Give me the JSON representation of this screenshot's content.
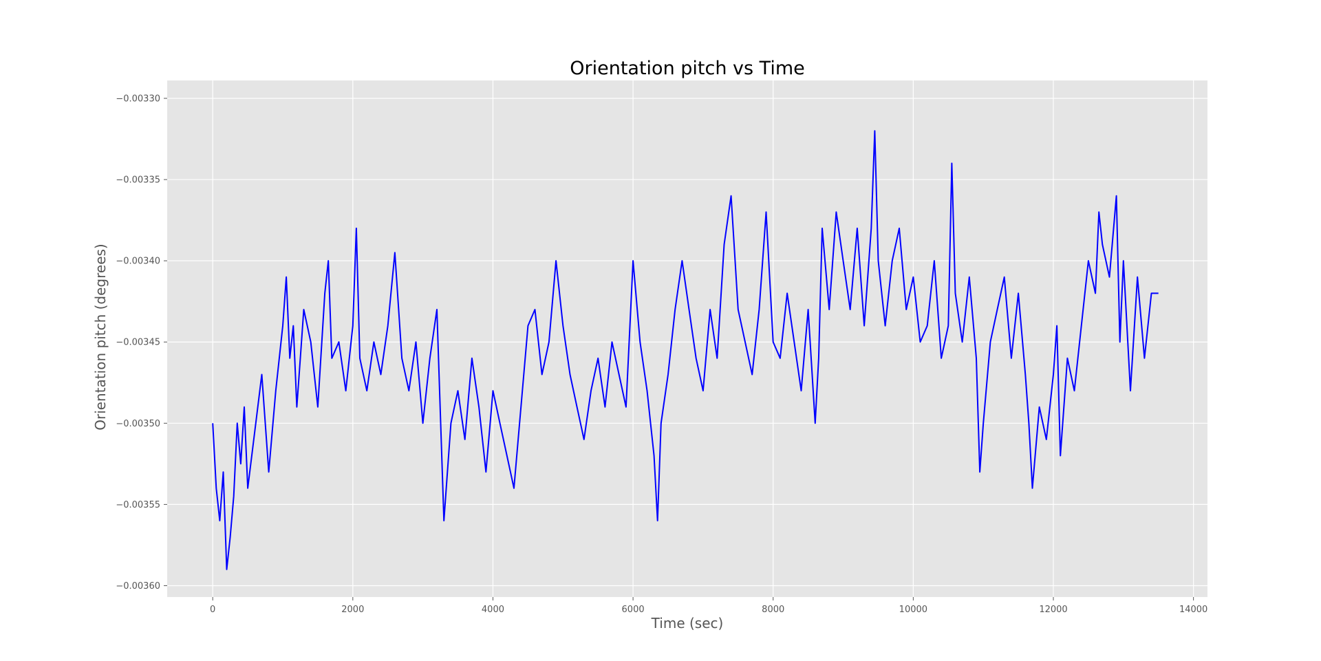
{
  "chart_data": {
    "type": "line",
    "title": "Orientation pitch vs Time",
    "xlabel": "Time (sec)",
    "ylabel": "Orientation pitch (degrees)",
    "xlim": [
      -650,
      14200
    ],
    "ylim": [
      -0.003607,
      -0.003289
    ],
    "grid": true,
    "xticks": [
      0,
      2000,
      4000,
      6000,
      8000,
      10000,
      12000,
      14000
    ],
    "xtick_labels": [
      "0",
      "2000",
      "4000",
      "6000",
      "8000",
      "10000",
      "12000",
      "14000"
    ],
    "yticks": [
      -0.0033,
      -0.00335,
      -0.0034,
      -0.00345,
      -0.0035,
      -0.00355,
      -0.0036
    ],
    "ytick_labels": [
      "−0.00330",
      "−0.00335",
      "−0.00340",
      "−0.00345",
      "−0.00350",
      "−0.00355",
      "−0.00360"
    ],
    "series": [
      {
        "color": "#0000ff",
        "x": [
          0,
          50,
          100,
          150,
          200,
          250,
          300,
          350,
          400,
          450,
          500,
          600,
          700,
          800,
          900,
          1000,
          1050,
          1100,
          1150,
          1200,
          1250,
          1300,
          1400,
          1500,
          1600,
          1650,
          1700,
          1800,
          1900,
          2000,
          2050,
          2100,
          2200,
          2300,
          2400,
          2500,
          2600,
          2700,
          2800,
          2900,
          3000,
          3100,
          3200,
          3300,
          3400,
          3500,
          3600,
          3700,
          3800,
          3900,
          4000,
          4100,
          4200,
          4300,
          4400,
          4500,
          4600,
          4700,
          4800,
          4900,
          5000,
          5100,
          5200,
          5300,
          5400,
          5500,
          5600,
          5700,
          5800,
          5900,
          6000,
          6100,
          6200,
          6300,
          6350,
          6400,
          6500,
          6600,
          6700,
          6800,
          6900,
          7000,
          7100,
          7200,
          7300,
          7400,
          7500,
          7600,
          7700,
          7800,
          7900,
          8000,
          8100,
          8200,
          8300,
          8400,
          8500,
          8600,
          8650,
          8700,
          8800,
          8900,
          9000,
          9100,
          9200,
          9300,
          9400,
          9450,
          9500,
          9600,
          9700,
          9800,
          9900,
          10000,
          10100,
          10200,
          10300,
          10400,
          10500,
          10550,
          10600,
          10700,
          10800,
          10900,
          10950,
          11000,
          11100,
          11200,
          11300,
          11400,
          11500,
          11600,
          11650,
          11700,
          11800,
          11900,
          12000,
          12050,
          12100,
          12200,
          12300,
          12400,
          12500,
          12600,
          12650,
          12700,
          12800,
          12900,
          12950,
          13000,
          13100,
          13200,
          13300,
          13400,
          13500
        ],
        "y": [
          -0.0035,
          -0.00354,
          -0.00356,
          -0.00353,
          -0.00359,
          -0.00357,
          -0.003545,
          -0.0035,
          -0.003525,
          -0.00349,
          -0.00354,
          -0.003505,
          -0.00347,
          -0.00353,
          -0.00348,
          -0.00344,
          -0.00341,
          -0.00346,
          -0.00344,
          -0.00349,
          -0.00346,
          -0.00343,
          -0.00345,
          -0.00349,
          -0.00342,
          -0.0034,
          -0.00346,
          -0.00345,
          -0.00348,
          -0.00344,
          -0.00338,
          -0.00346,
          -0.00348,
          -0.00345,
          -0.00347,
          -0.00344,
          -0.003395,
          -0.00346,
          -0.00348,
          -0.00345,
          -0.0035,
          -0.00346,
          -0.00343,
          -0.00356,
          -0.0035,
          -0.00348,
          -0.00351,
          -0.00346,
          -0.00349,
          -0.00353,
          -0.00348,
          -0.0035,
          -0.00352,
          -0.00354,
          -0.00349,
          -0.00344,
          -0.00343,
          -0.00347,
          -0.00345,
          -0.0034,
          -0.00344,
          -0.00347,
          -0.00349,
          -0.00351,
          -0.00348,
          -0.00346,
          -0.00349,
          -0.00345,
          -0.00347,
          -0.00349,
          -0.0034,
          -0.00345,
          -0.00348,
          -0.00352,
          -0.00356,
          -0.0035,
          -0.00347,
          -0.00343,
          -0.0034,
          -0.00343,
          -0.00346,
          -0.00348,
          -0.00343,
          -0.00346,
          -0.00339,
          -0.00336,
          -0.00343,
          -0.00345,
          -0.00347,
          -0.00343,
          -0.00337,
          -0.00345,
          -0.00346,
          -0.00342,
          -0.00345,
          -0.00348,
          -0.00343,
          -0.0035,
          -0.00346,
          -0.00338,
          -0.00343,
          -0.00337,
          -0.0034,
          -0.00343,
          -0.00338,
          -0.00344,
          -0.00338,
          -0.00332,
          -0.0034,
          -0.00344,
          -0.0034,
          -0.00338,
          -0.00343,
          -0.00341,
          -0.00345,
          -0.00344,
          -0.0034,
          -0.00346,
          -0.00344,
          -0.00334,
          -0.00342,
          -0.00345,
          -0.00341,
          -0.00346,
          -0.00353,
          -0.0035,
          -0.00345,
          -0.00343,
          -0.00341,
          -0.00346,
          -0.00342,
          -0.00347,
          -0.0035,
          -0.00354,
          -0.00349,
          -0.00351,
          -0.00347,
          -0.00344,
          -0.00352,
          -0.00346,
          -0.00348,
          -0.00344,
          -0.0034,
          -0.00342,
          -0.00337,
          -0.00339,
          -0.00341,
          -0.00336,
          -0.00345,
          -0.0034,
          -0.00348,
          -0.00341,
          -0.00346,
          -0.00342,
          -0.00342
        ]
      }
    ]
  }
}
